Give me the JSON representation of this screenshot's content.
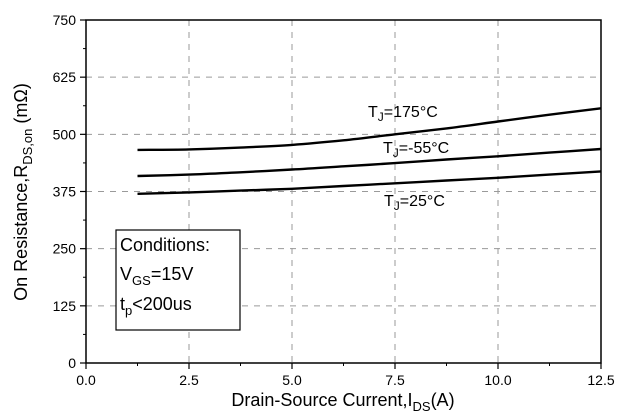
{
  "chart_data": {
    "type": "line",
    "xlabel": "Drain-Source Current,I",
    "xlabel_sub": "DS",
    "xlabel_suffix": "(A)",
    "ylabel": "On Resistance,R",
    "ylabel_sub": "DS,on",
    "ylabel_suffix": " (mΩ)",
    "xlim": [
      0,
      12.5
    ],
    "ylim": [
      0,
      750
    ],
    "x_ticks": [
      "0.0",
      "2.5",
      "5.0",
      "7.5",
      "10.0",
      "12.5"
    ],
    "y_ticks": [
      "0",
      "125",
      "250",
      "375",
      "500",
      "625",
      "750"
    ],
    "grid": true,
    "series": [
      {
        "name": "T_J=175°C",
        "x": [
          1.25,
          2.5,
          3.75,
          5.0,
          6.25,
          7.5,
          8.75,
          10.0,
          11.25,
          12.5
        ],
        "y": [
          466,
          467,
          471,
          477,
          487,
          500,
          513,
          528,
          543,
          557
        ]
      },
      {
        "name": "T_J=-55°C",
        "x": [
          1.25,
          2.5,
          3.75,
          5.0,
          6.25,
          7.5,
          8.75,
          10.0,
          11.25,
          12.5
        ],
        "y": [
          409,
          412,
          417,
          423,
          430,
          437,
          445,
          452,
          460,
          468
        ]
      },
      {
        "name": "T_J=25°C",
        "x": [
          1.25,
          2.5,
          3.75,
          5.0,
          6.25,
          7.5,
          8.75,
          10.0,
          11.25,
          12.5
        ],
        "y": [
          370,
          373,
          377,
          381,
          387,
          393,
          399,
          405,
          412,
          419
        ]
      }
    ],
    "curve_labels": [
      {
        "main": "T",
        "sub": "J",
        "rest": "=175°C"
      },
      {
        "main": "T",
        "sub": "J",
        "rest": "=-55°C"
      },
      {
        "main": "T",
        "sub": "J",
        "rest": "=25°C"
      }
    ],
    "conditions": {
      "title": "Conditions:",
      "line1_main": "V",
      "line1_sub": "GS",
      "line1_rest": "=15V",
      "line2_main": "t",
      "line2_sub": "p",
      "line2_rest": "<200us"
    }
  }
}
